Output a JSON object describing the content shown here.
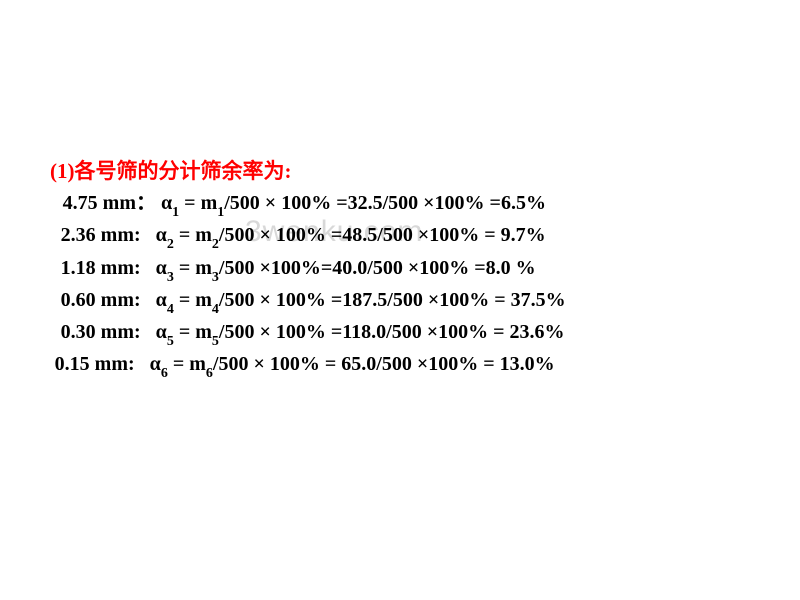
{
  "title": "(1)各号筛的分计筛余率为:",
  "watermark": "3wenku.com",
  "lines": [
    {
      "label_width": "96px",
      "size": "4.75 mm",
      "sep": "：",
      "alpha_idx": "1",
      "m_idx": "1",
      "mass": "32.5",
      "result": "6.5%",
      "prefix_eq": " ="
    },
    {
      "label_width": "94px",
      "size": "2.36 mm",
      "sep": ":",
      "alpha_idx": "2",
      "m_idx": "2",
      "mass": "48.5",
      "result": " 9.7%",
      "prefix_eq": " = "
    },
    {
      "label_width": "94px",
      "size": "1.18 mm",
      "sep": ":",
      "alpha_idx": "3",
      "m_idx": "3",
      "mass_eq": "/500 ×100%=40.0/500 ×100% =",
      "result": "8.0 %"
    },
    {
      "label_width": "94px",
      "size": "0.60 mm",
      "sep": ":",
      "alpha_idx": "4",
      "m_idx": "4",
      "mass": "187.5",
      "result": " 37.5%",
      "prefix_eq": " = "
    },
    {
      "label_width": "94px",
      "size": "0.30 mm",
      "sep": ":",
      "alpha_idx": "5",
      "m_idx": "5",
      "mass": "118.0",
      "result": "  23.6%",
      "prefix_eq": " = "
    },
    {
      "label_width": "88px",
      "size": "0.15 mm",
      "sep": ":",
      "alpha_idx": "6",
      "m_idx": "6",
      "mass": " 65.0",
      "result": " 13.0%",
      "prefix_eq": " = ",
      "mid_eq": "/500 × 100% = "
    }
  ],
  "colors": {
    "title": "#ff0000",
    "text": "#000000",
    "watermark": "#d8d8d8",
    "background": "#ffffff"
  },
  "fonts": {
    "title_size": 21,
    "body_size": 20,
    "sub_size": 14
  }
}
